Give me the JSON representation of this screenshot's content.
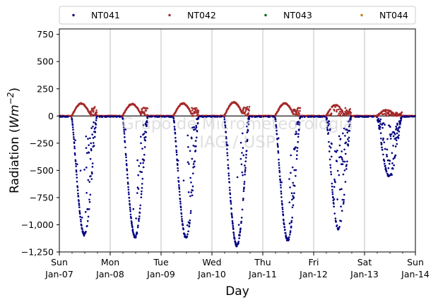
{
  "chart_data": {
    "type": "scatter",
    "title": "",
    "xlabel": "Day",
    "ylabel_main": "Radiation (",
    "ylabel_unit": "Wm",
    "ylabel_exp": "−2",
    "ylabel_close": ")",
    "watermark": [
      "Grupo de Micrometeorologia",
      "IAG / USP"
    ],
    "ylim": [
      -1250,
      800
    ],
    "yticks": [
      -1250,
      -1000,
      -750,
      -500,
      -250,
      0,
      250,
      500,
      750
    ],
    "xlim": [
      "2007-01-07",
      "2007-01-14"
    ],
    "xticks": [
      {
        "day": "Sun",
        "date": "Jan-07"
      },
      {
        "day": "Mon",
        "date": "Jan-08"
      },
      {
        "day": "Tue",
        "date": "Jan-09"
      },
      {
        "day": "Wed",
        "date": "Jan-10"
      },
      {
        "day": "Thu",
        "date": "Jan-11"
      },
      {
        "day": "Fri",
        "date": "Jan-12"
      },
      {
        "day": "Sat",
        "date": "Jan-13"
      },
      {
        "day": "Sun",
        "date": "Jan-14"
      }
    ],
    "grid": "vertical",
    "legend_position": "top",
    "series": [
      {
        "name": "NT041",
        "color": "#000080"
      },
      {
        "name": "NT042",
        "color": "#a52a2a"
      },
      {
        "name": "NT043",
        "color": "#006400"
      },
      {
        "name": "NT044",
        "color": "#b8860b"
      }
    ],
    "daily_extremes": [
      {
        "date": "2007-01-07",
        "NT041_min": -1090,
        "NT042_max": 115
      },
      {
        "date": "2007-01-08",
        "NT041_min": -1110,
        "NT042_max": 110
      },
      {
        "date": "2007-01-09",
        "NT041_min": -1120,
        "NT042_max": 115
      },
      {
        "date": "2007-01-10",
        "NT041_min": -1190,
        "NT042_max": 125
      },
      {
        "date": "2007-01-11",
        "NT041_min": -1140,
        "NT042_max": 115
      },
      {
        "date": "2007-01-12",
        "NT041_min": -1040,
        "NT042_max": 100
      },
      {
        "date": "2007-01-13",
        "NT041_min": -560,
        "NT042_max": 55
      }
    ]
  }
}
